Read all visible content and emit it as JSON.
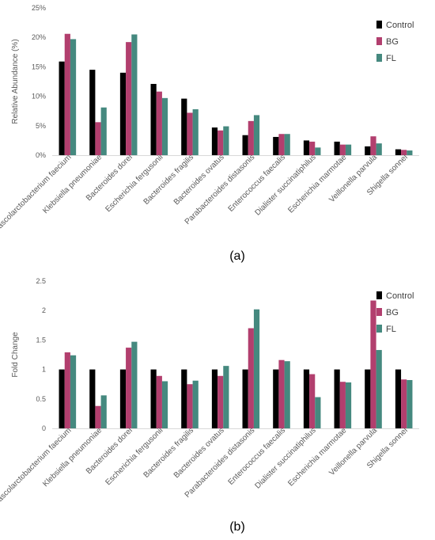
{
  "chart_data": [
    {
      "type": "bar",
      "panel_label": "(a)",
      "ylabel": "Relative Abundance (%)",
      "ylim": [
        0,
        25
      ],
      "yticks": [
        0,
        5,
        10,
        15,
        20,
        25
      ],
      "ytick_labels": [
        "0%",
        "5%",
        "10%",
        "15%",
        "20%",
        "25%"
      ],
      "grid": false,
      "legend": "top-right",
      "categories": [
        "Phascolarctobacterium faecium",
        "Klebsiella pneumoniae",
        "Bacteroides dorei",
        "Escherichia fergusonii",
        "Bacteroides fragilis",
        "Bacteroides ovatus",
        "Parabacteroides distasonis",
        "Enterococcus faecalis",
        "Dialister succinatiphilus",
        "Escherichia marmotae",
        "Veillonella parvula",
        "Shigella sonnei"
      ],
      "series": [
        {
          "name": "Control",
          "color": "#000000",
          "values": [
            15.9,
            14.5,
            14.0,
            12.1,
            9.6,
            4.7,
            3.4,
            3.1,
            2.5,
            2.3,
            1.5,
            1.0
          ]
        },
        {
          "name": "BG",
          "color": "#b23f6e",
          "values": [
            20.6,
            5.6,
            19.2,
            10.8,
            7.2,
            4.2,
            5.8,
            3.6,
            2.3,
            1.8,
            3.2,
            0.9
          ]
        },
        {
          "name": "FL",
          "color": "#45897f",
          "values": [
            19.7,
            8.1,
            20.5,
            9.7,
            7.8,
            4.9,
            6.8,
            3.6,
            1.3,
            1.8,
            2.0,
            0.8
          ]
        }
      ]
    },
    {
      "type": "bar",
      "panel_label": "(b)",
      "ylabel": "Fold Change",
      "ylim": [
        0,
        2.5
      ],
      "yticks": [
        0,
        0.5,
        1,
        1.5,
        2,
        2.5
      ],
      "ytick_labels": [
        "0",
        "0.5",
        "1",
        "1.5",
        "2",
        "2.5"
      ],
      "grid": false,
      "legend": "top-right",
      "categories": [
        "Phascolarctobacterium faecium",
        "Klebsiella pneumoniae",
        "Bacteroides dorei",
        "Escherichia fergusonii",
        "Bacteroides fragilis",
        "Bacteroides ovatus",
        "Parabacteroides distasonis",
        "Enterococcus faecalis",
        "Dialister succinatiphilus",
        "Escherichia marmotae",
        "Veillonella parvula",
        "Shigella sonnei"
      ],
      "series": [
        {
          "name": "Control",
          "color": "#000000",
          "values": [
            1,
            1,
            1,
            1,
            1,
            1,
            1,
            1,
            1,
            1,
            1,
            1
          ]
        },
        {
          "name": "BG",
          "color": "#b23f6e",
          "values": [
            1.29,
            0.38,
            1.37,
            0.89,
            0.75,
            0.89,
            1.7,
            1.16,
            0.92,
            0.79,
            2.17,
            0.83
          ]
        },
        {
          "name": "FL",
          "color": "#45897f",
          "values": [
            1.24,
            0.56,
            1.47,
            0.8,
            0.81,
            1.06,
            2.02,
            1.14,
            0.53,
            0.78,
            1.33,
            0.82
          ]
        }
      ]
    }
  ]
}
